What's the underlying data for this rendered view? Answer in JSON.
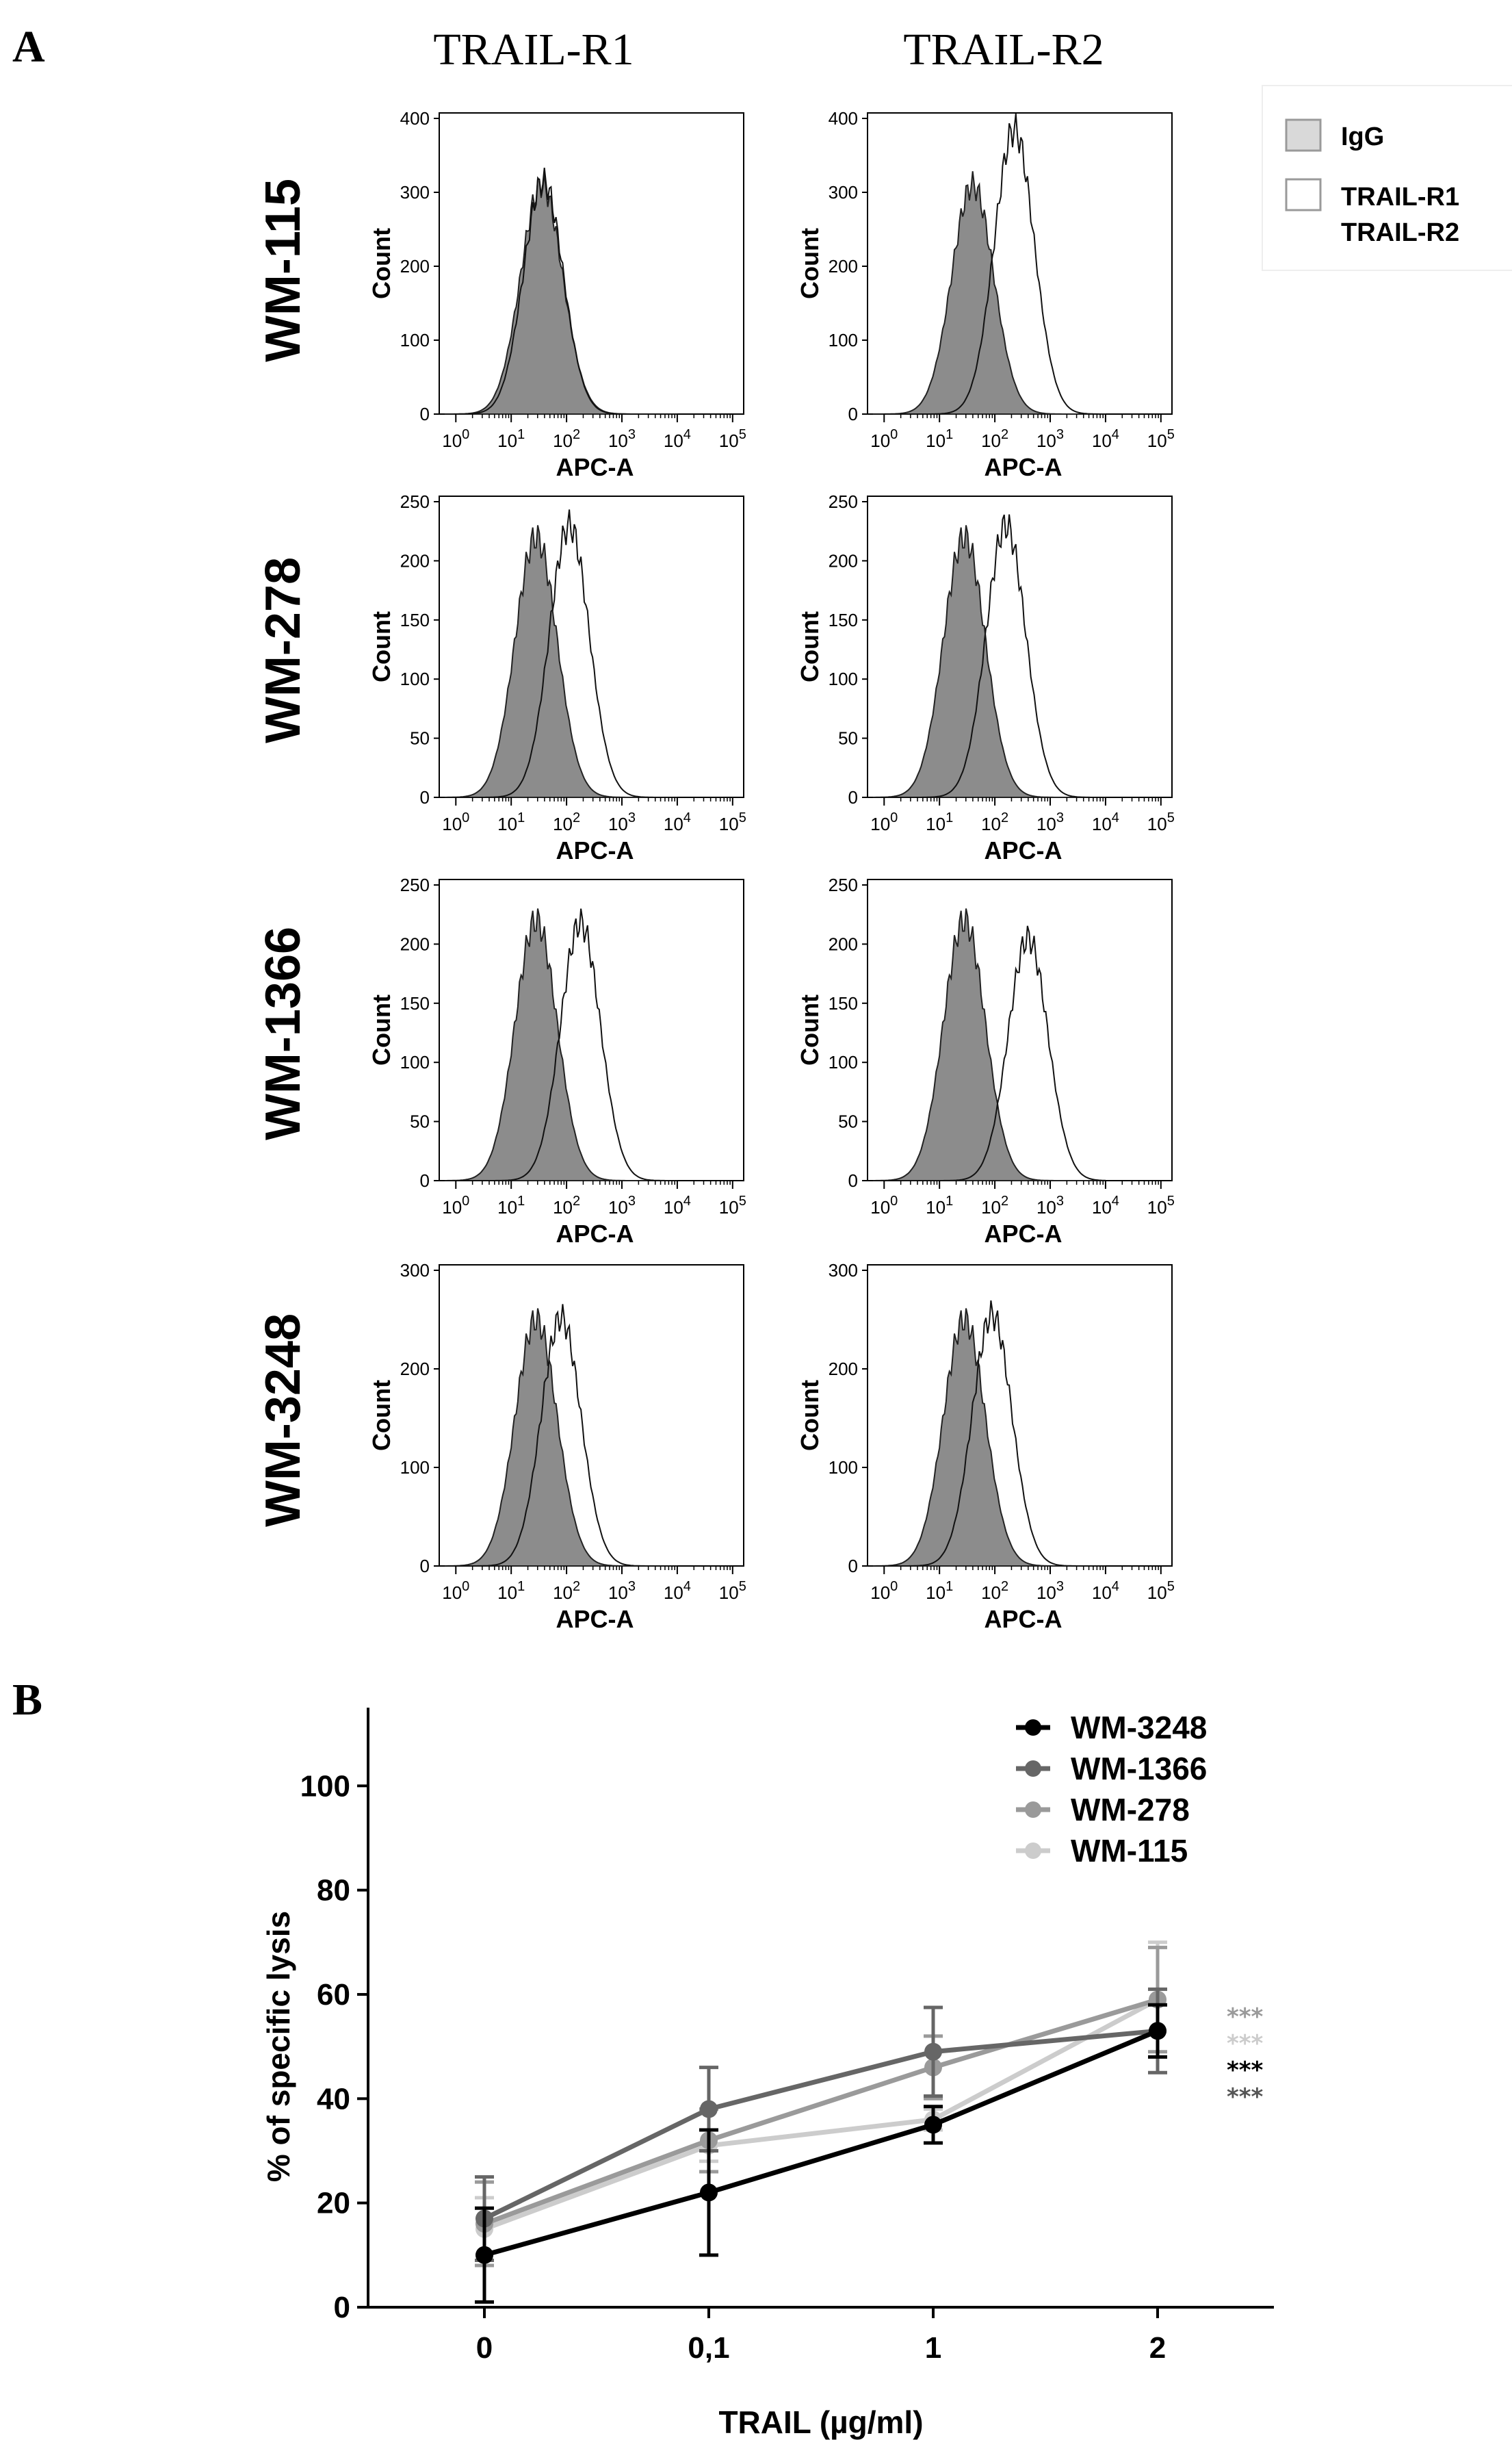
{
  "panel_a": {
    "label": "A",
    "col_titles": [
      "TRAIL-R1",
      "TRAIL-R2"
    ],
    "rows": [
      {
        "label": "WM-115",
        "y_ticks": [
          "0",
          "100",
          "200",
          "300",
          "400"
        ],
        "ymax": 400
      },
      {
        "label": "WM-278",
        "y_ticks": [
          "0",
          "50",
          "100",
          "150",
          "200",
          "250"
        ],
        "ymax": 250
      },
      {
        "label": "WM-1366",
        "y_ticks": [
          "0",
          "50",
          "100",
          "150",
          "200",
          "250"
        ],
        "ymax": 250
      },
      {
        "label": "WM-3248",
        "y_ticks": [
          "0",
          "100",
          "200",
          "300"
        ],
        "ymax": 300
      }
    ],
    "y_axis_label": "Count",
    "x_axis_label": "APC-A",
    "x_tick_base": "10",
    "x_tick_exponents": [
      "0",
      "1",
      "2",
      "3",
      "4",
      "5"
    ],
    "legend": {
      "igg_label": "IgG",
      "receptor_line1": "TRAIL-R1",
      "receptor_line2": "TRAIL-R2"
    },
    "histograms": {
      "note": "log10 APC-A peak positions and peak counts for IgG (filled) vs receptor (open)",
      "R1": [
        {
          "igg_peak": 1.55,
          "igg_max": 310,
          "rec_peak": 1.58,
          "rec_max": 315
        },
        {
          "igg_peak": 1.45,
          "igg_max": 220,
          "rec_peak": 2.05,
          "rec_max": 230
        },
        {
          "igg_peak": 1.45,
          "igg_max": 220,
          "rec_peak": 2.25,
          "rec_max": 218
        },
        {
          "igg_peak": 1.45,
          "igg_max": 250,
          "rec_peak": 1.9,
          "rec_max": 252
        }
      ],
      "R2": [
        {
          "igg_peak": 1.6,
          "igg_max": 310,
          "rec_peak": 2.35,
          "rec_max": 385
        },
        {
          "igg_peak": 1.45,
          "igg_max": 220,
          "rec_peak": 2.2,
          "rec_max": 230
        },
        {
          "igg_peak": 1.45,
          "igg_max": 220,
          "rec_peak": 2.6,
          "rec_max": 205
        },
        {
          "igg_peak": 1.45,
          "igg_max": 250,
          "rec_peak": 1.95,
          "rec_max": 255
        }
      ]
    }
  },
  "panel_b": {
    "label": "B",
    "chart_data": {
      "type": "line",
      "title": "",
      "xlabel": "TRAIL (µg/ml)",
      "ylabel": "% of specific lysis",
      "categories": [
        "0",
        "0,1",
        "1",
        "2"
      ],
      "y_ticks": [
        "0",
        "20",
        "40",
        "60",
        "80",
        "100"
      ],
      "ylim": [
        0,
        115
      ],
      "series": [
        {
          "name": "WM-3248",
          "color": "#000000",
          "values": [
            10,
            22,
            35,
            53
          ],
          "err": [
            9,
            12,
            3.5,
            5
          ]
        },
        {
          "name": "WM-1366",
          "color": "#666666",
          "values": [
            17,
            38,
            49,
            53
          ],
          "err": [
            8,
            8,
            8.5,
            8
          ]
        },
        {
          "name": "WM-278",
          "color": "#9a9a9a",
          "values": [
            16,
            32,
            46,
            59
          ],
          "err": [
            8,
            6,
            6,
            10
          ]
        },
        {
          "name": "WM-115",
          "color": "#cccccc",
          "values": [
            15,
            31,
            36,
            59
          ],
          "err": [
            6,
            3,
            2,
            11
          ]
        }
      ],
      "significance": [
        {
          "label": "***",
          "color": "#9a9a9a"
        },
        {
          "label": "***",
          "color": "#cccccc"
        },
        {
          "label": "***",
          "color": "#000000"
        },
        {
          "label": "***",
          "color": "#555555"
        }
      ]
    }
  }
}
